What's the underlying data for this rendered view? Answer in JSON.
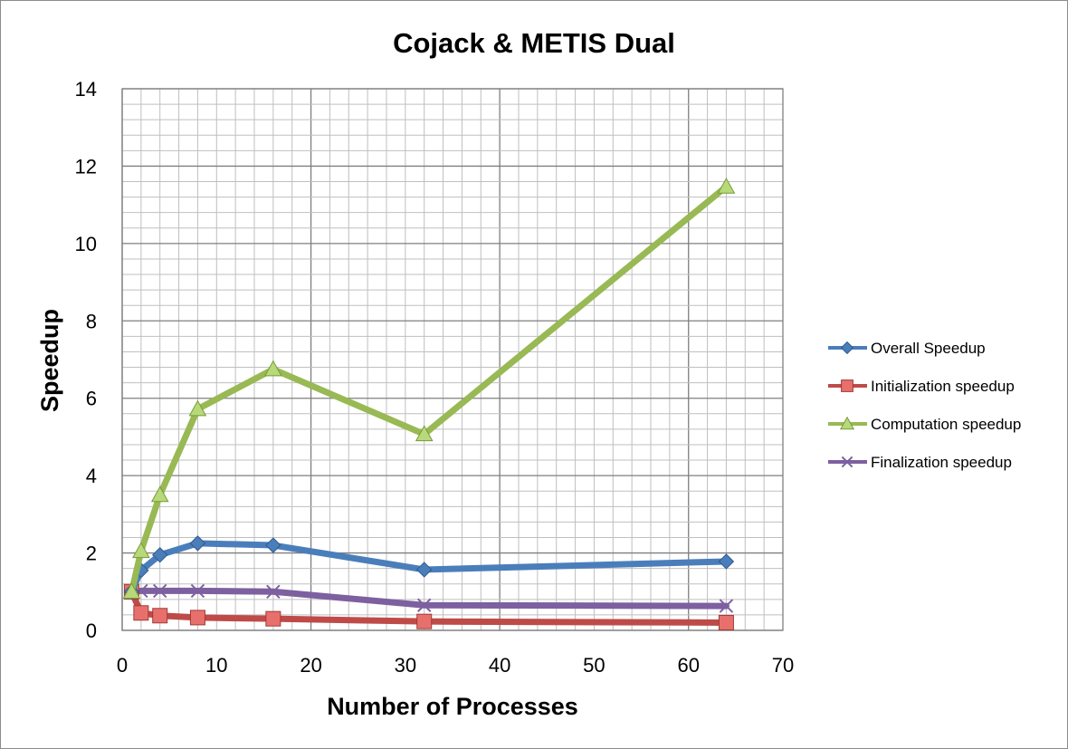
{
  "chart_data": {
    "type": "line",
    "title": "Cojack & METIS Dual",
    "xlabel": "Number of Processes",
    "ylabel": "Speedup",
    "xlim": [
      0,
      70
    ],
    "ylim": [
      0,
      14
    ],
    "x_ticks": [
      0,
      10,
      20,
      30,
      40,
      50,
      60,
      70
    ],
    "y_ticks": [
      0,
      2,
      4,
      6,
      8,
      10,
      12,
      14
    ],
    "grid": true,
    "legend_position": "right",
    "x": [
      1,
      2,
      4,
      8,
      16,
      32,
      64
    ],
    "series": [
      {
        "name": "Overall Speedup",
        "color": "#4a7ebb",
        "marker": "diamond",
        "values": [
          1,
          1.55,
          1.95,
          2.25,
          2.2,
          1.57,
          1.78
        ]
      },
      {
        "name": "Initialization speedup",
        "color": "#be4b48",
        "marker": "square",
        "values": [
          1,
          0.45,
          0.38,
          0.33,
          0.3,
          0.23,
          0.2
        ]
      },
      {
        "name": "Computation speedup",
        "color": "#98b954",
        "marker": "triangle",
        "values": [
          1,
          2.05,
          3.5,
          5.72,
          6.75,
          5.07,
          11.47
        ]
      },
      {
        "name": "Finalization speedup",
        "color": "#7d60a0",
        "marker": "x",
        "values": [
          1,
          1.02,
          1.02,
          1.02,
          1.0,
          0.65,
          0.63
        ]
      }
    ]
  }
}
